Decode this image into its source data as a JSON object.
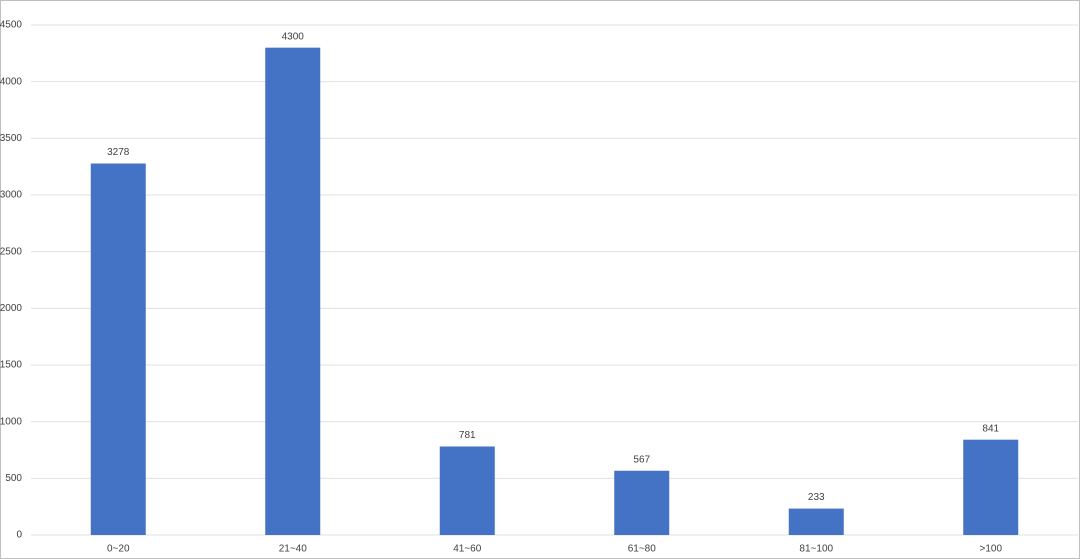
{
  "chart_data": {
    "type": "bar",
    "categories": [
      "0~20",
      "21~40",
      "41~60",
      "61~80",
      "81~100",
      ">100"
    ],
    "values": [
      3278,
      4300,
      781,
      567,
      233,
      841
    ],
    "color": "#4472c4",
    "ylim": [
      0,
      4500
    ],
    "yticks": [
      0,
      500,
      1000,
      1500,
      2000,
      2500,
      3000,
      3500,
      4000,
      4500
    ],
    "grid": true
  }
}
